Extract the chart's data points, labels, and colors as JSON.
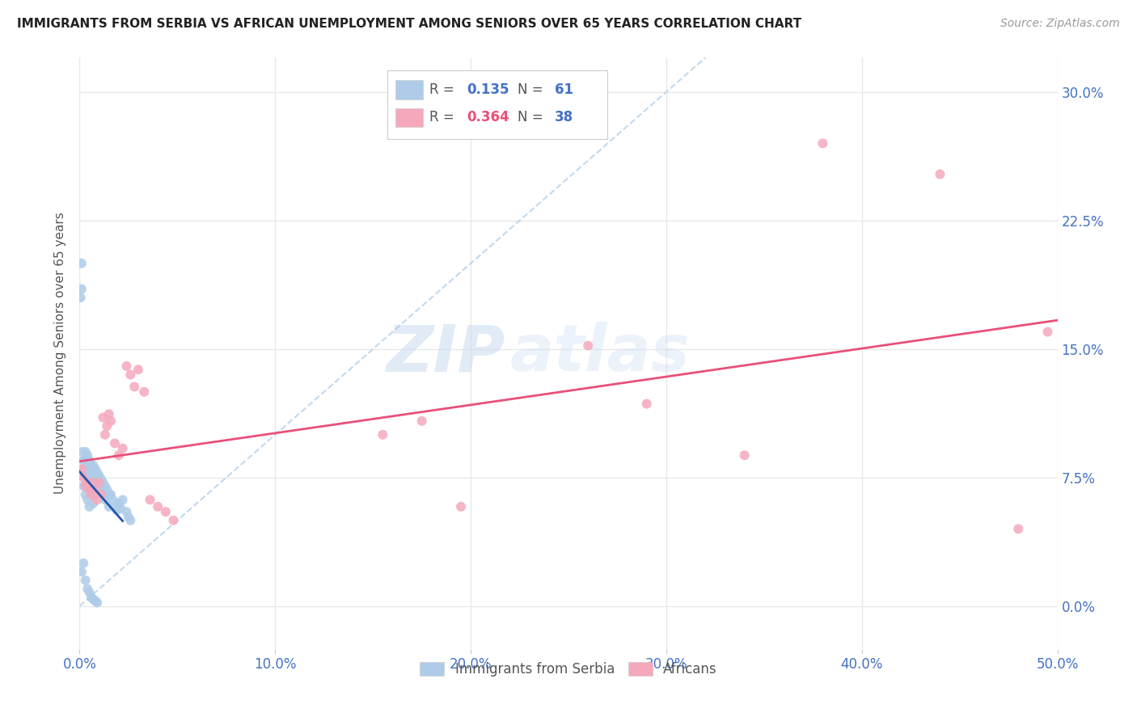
{
  "title": "IMMIGRANTS FROM SERBIA VS AFRICAN UNEMPLOYMENT AMONG SENIORS OVER 65 YEARS CORRELATION CHART",
  "source": "Source: ZipAtlas.com",
  "ylabel": "Unemployment Among Seniors over 65 years",
  "serbia_R": "0.135",
  "serbia_N": "61",
  "african_R": "0.364",
  "african_N": "38",
  "serbia_color": "#aecce8",
  "african_color": "#f5a8bc",
  "serbia_line_color": "#2255aa",
  "african_line_color": "#e8507a",
  "dashed_line_color": "#aecce8",
  "xlim": [
    0.0,
    0.5
  ],
  "ylim": [
    -0.025,
    0.32
  ],
  "x_ticks": [
    0.0,
    0.1,
    0.2,
    0.3,
    0.4,
    0.5
  ],
  "x_tick_labels": [
    "0.0%",
    "10.0%",
    "20.0%",
    "30.0%",
    "40.0%",
    "50.0%"
  ],
  "y_ticks": [
    0.0,
    0.075,
    0.15,
    0.225,
    0.3
  ],
  "y_tick_labels": [
    "0.0%",
    "7.5%",
    "15.0%",
    "22.5%",
    "30.0%"
  ],
  "serbia_x": [
    0.0005,
    0.001,
    0.001,
    0.0015,
    0.002,
    0.002,
    0.002,
    0.003,
    0.003,
    0.003,
    0.003,
    0.004,
    0.004,
    0.004,
    0.004,
    0.005,
    0.005,
    0.005,
    0.005,
    0.006,
    0.006,
    0.006,
    0.007,
    0.007,
    0.007,
    0.007,
    0.008,
    0.008,
    0.008,
    0.009,
    0.009,
    0.01,
    0.01,
    0.011,
    0.011,
    0.012,
    0.012,
    0.013,
    0.013,
    0.014,
    0.015,
    0.015,
    0.016,
    0.017,
    0.018,
    0.019,
    0.02,
    0.021,
    0.022,
    0.024,
    0.025,
    0.026,
    0.001,
    0.002,
    0.003,
    0.004,
    0.005,
    0.006,
    0.007,
    0.008,
    0.009
  ],
  "serbia_y": [
    0.18,
    0.2,
    0.185,
    0.09,
    0.085,
    0.08,
    0.07,
    0.09,
    0.085,
    0.075,
    0.065,
    0.088,
    0.08,
    0.072,
    0.062,
    0.085,
    0.078,
    0.068,
    0.058,
    0.082,
    0.074,
    0.065,
    0.082,
    0.076,
    0.068,
    0.06,
    0.08,
    0.073,
    0.065,
    0.078,
    0.07,
    0.076,
    0.068,
    0.074,
    0.066,
    0.072,
    0.064,
    0.07,
    0.062,
    0.068,
    0.065,
    0.058,
    0.065,
    0.062,
    0.058,
    0.056,
    0.06,
    0.057,
    0.062,
    0.055,
    0.052,
    0.05,
    0.02,
    0.025,
    0.015,
    0.01,
    0.008,
    0.005,
    0.004,
    0.003,
    0.002
  ],
  "african_x": [
    0.001,
    0.002,
    0.003,
    0.004,
    0.005,
    0.006,
    0.007,
    0.008,
    0.009,
    0.01,
    0.011,
    0.012,
    0.013,
    0.014,
    0.015,
    0.016,
    0.018,
    0.02,
    0.022,
    0.024,
    0.026,
    0.028,
    0.03,
    0.033,
    0.036,
    0.04,
    0.044,
    0.048,
    0.155,
    0.175,
    0.195,
    0.26,
    0.29,
    0.34,
    0.38,
    0.44,
    0.48,
    0.495
  ],
  "african_y": [
    0.08,
    0.075,
    0.07,
    0.072,
    0.068,
    0.065,
    0.072,
    0.068,
    0.062,
    0.072,
    0.065,
    0.11,
    0.1,
    0.105,
    0.112,
    0.108,
    0.095,
    0.088,
    0.092,
    0.14,
    0.135,
    0.128,
    0.138,
    0.125,
    0.062,
    0.058,
    0.055,
    0.05,
    0.1,
    0.108,
    0.058,
    0.152,
    0.118,
    0.088,
    0.27,
    0.252,
    0.045,
    0.16
  ],
  "watermark_zip": "ZIP",
  "watermark_atlas": "atlas",
  "background_color": "#ffffff",
  "grid_color": "#e8e8e8"
}
